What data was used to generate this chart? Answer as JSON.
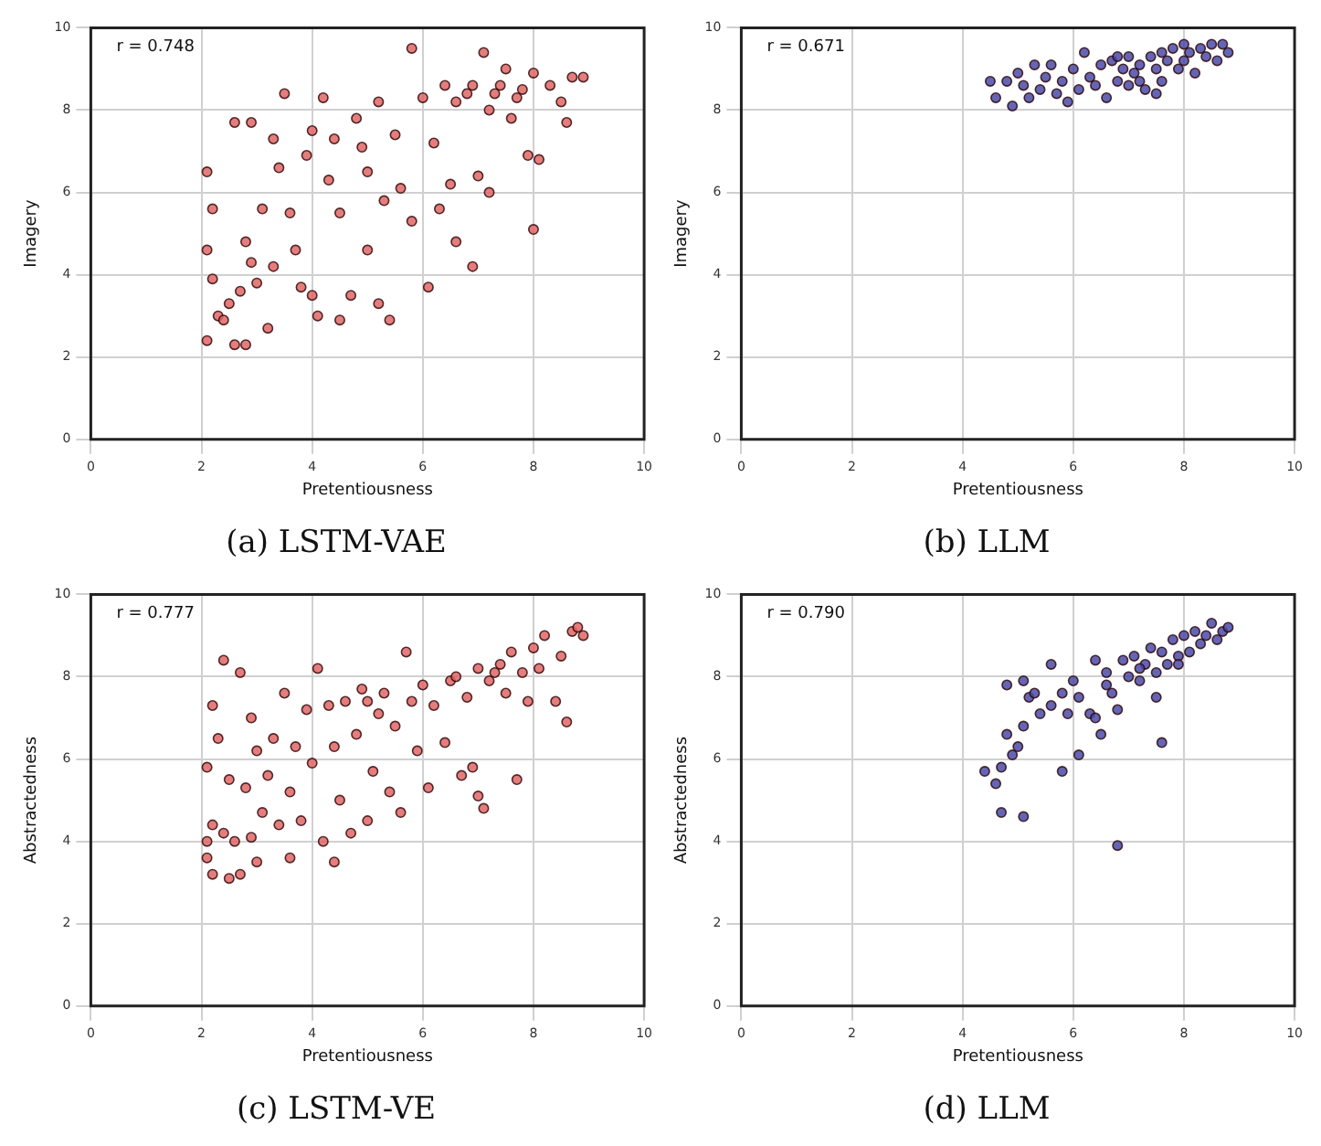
{
  "chart_data": [
    {
      "type": "scatter",
      "title": "(a) LSTM-VAE",
      "xlabel": "Pretentiousness",
      "ylabel": "Imagery",
      "color": "#e06666",
      "marker": "circle",
      "grid": true,
      "xlim": [
        0,
        10
      ],
      "ylim": [
        0,
        10
      ],
      "xticks": [
        0,
        2,
        4,
        6,
        8,
        10
      ],
      "yticks": [
        0,
        2,
        4,
        6,
        8,
        10
      ],
      "annotations": [
        "r = 0.748"
      ],
      "x": [
        2.1,
        2.2,
        2.1,
        2.2,
        2.3,
        2.1,
        2.4,
        2.5,
        2.6,
        2.7,
        2.8,
        2.9,
        3.0,
        3.2,
        3.1,
        2.6,
        2.9,
        3.3,
        3.5,
        3.4,
        3.6,
        3.7,
        3.8,
        4.0,
        4.1,
        3.9,
        4.0,
        4.2,
        4.3,
        4.5,
        4.5,
        4.7,
        4.8,
        5.0,
        5.0,
        5.2,
        5.2,
        5.4,
        5.5,
        5.6,
        5.8,
        5.8,
        6.0,
        6.1,
        6.2,
        6.4,
        6.5,
        6.6,
        6.8,
        6.9,
        7.0,
        7.1,
        7.2,
        7.4,
        7.5,
        7.6,
        7.8,
        7.9,
        8.0,
        8.0,
        8.1,
        8.3,
        8.5,
        8.6,
        8.7,
        8.9,
        6.6,
        7.3,
        7.7,
        6.9,
        4.4,
        4.9,
        3.3,
        2.8,
        5.3,
        6.3,
        7.2
      ],
      "values": [
        6.5,
        5.6,
        4.6,
        3.9,
        3.0,
        2.4,
        2.9,
        3.3,
        2.3,
        3.6,
        2.3,
        4.3,
        3.8,
        2.7,
        5.6,
        7.7,
        7.7,
        7.3,
        8.4,
        6.6,
        5.5,
        4.6,
        3.7,
        3.5,
        3.0,
        6.9,
        7.5,
        8.3,
        6.3,
        5.5,
        2.9,
        3.5,
        7.8,
        6.5,
        4.6,
        3.3,
        8.2,
        2.9,
        7.4,
        6.1,
        9.5,
        5.3,
        8.3,
        3.7,
        7.2,
        8.6,
        6.2,
        4.8,
        8.4,
        4.2,
        6.4,
        9.4,
        8.0,
        8.6,
        9.0,
        7.8,
        8.5,
        6.9,
        5.1,
        8.9,
        6.8,
        8.6,
        8.2,
        7.7,
        8.8,
        8.8,
        8.2,
        8.4,
        8.3,
        8.6,
        7.3,
        7.1,
        4.2,
        4.8,
        5.8,
        5.6,
        6.0
      ]
    },
    {
      "type": "scatter",
      "title": "(b) LLM",
      "xlabel": "Pretentiousness",
      "ylabel": "Imagery",
      "color": "#4a4aa8",
      "marker": "circle",
      "grid": true,
      "xlim": [
        0,
        10
      ],
      "ylim": [
        0,
        10
      ],
      "xticks": [
        0,
        2,
        4,
        6,
        8,
        10
      ],
      "yticks": [
        0,
        2,
        4,
        6,
        8,
        10
      ],
      "annotations": [
        "r = 0.671"
      ],
      "x": [
        4.5,
        4.6,
        4.8,
        4.9,
        5.0,
        5.1,
        5.2,
        5.3,
        5.4,
        5.5,
        5.6,
        5.7,
        5.8,
        5.9,
        6.0,
        6.1,
        6.2,
        6.3,
        6.4,
        6.5,
        6.6,
        6.7,
        6.8,
        6.9,
        7.0,
        7.0,
        7.1,
        7.2,
        7.3,
        7.4,
        7.5,
        7.6,
        7.6,
        7.7,
        7.8,
        7.9,
        8.0,
        8.0,
        8.1,
        8.2,
        8.3,
        8.4,
        8.5,
        8.6,
        8.7,
        8.8,
        7.2,
        6.8,
        7.5
      ],
      "values": [
        8.7,
        8.3,
        8.7,
        8.1,
        8.9,
        8.6,
        8.3,
        9.1,
        8.5,
        8.8,
        9.1,
        8.4,
        8.7,
        8.2,
        9.0,
        8.5,
        9.4,
        8.8,
        8.6,
        9.1,
        8.3,
        9.2,
        8.7,
        9.0,
        9.3,
        8.6,
        8.9,
        9.1,
        8.5,
        9.3,
        9.0,
        9.4,
        8.7,
        9.2,
        9.5,
        9.0,
        9.6,
        9.2,
        9.4,
        8.9,
        9.5,
        9.3,
        9.6,
        9.2,
        9.6,
        9.4,
        8.7,
        9.3,
        8.4
      ]
    },
    {
      "type": "scatter",
      "title": "(c) LSTM-VE",
      "xlabel": "Pretentiousness",
      "ylabel": "Abstractedness",
      "color": "#e06666",
      "marker": "circle",
      "grid": true,
      "xlim": [
        0,
        10
      ],
      "ylim": [
        0,
        10
      ],
      "xticks": [
        0,
        2,
        4,
        6,
        8,
        10
      ],
      "yticks": [
        0,
        2,
        4,
        6,
        8,
        10
      ],
      "annotations": [
        "r = 0.777"
      ],
      "x": [
        2.1,
        2.1,
        2.1,
        2.2,
        2.2,
        2.2,
        2.3,
        2.4,
        2.4,
        2.5,
        2.5,
        2.6,
        2.7,
        2.7,
        2.8,
        2.9,
        2.9,
        3.0,
        3.0,
        3.1,
        3.2,
        3.3,
        3.4,
        3.5,
        3.6,
        3.6,
        3.7,
        3.8,
        3.9,
        4.0,
        4.1,
        4.2,
        4.3,
        4.4,
        4.4,
        4.5,
        4.6,
        4.7,
        4.8,
        4.9,
        5.0,
        5.1,
        5.2,
        5.3,
        5.4,
        5.5,
        5.6,
        5.7,
        5.8,
        5.9,
        6.0,
        6.1,
        6.2,
        6.4,
        6.5,
        6.7,
        6.8,
        6.9,
        7.0,
        7.0,
        7.1,
        7.2,
        7.4,
        7.5,
        7.6,
        7.7,
        7.8,
        7.9,
        8.0,
        8.1,
        8.2,
        8.4,
        8.5,
        8.6,
        8.7,
        8.8,
        8.9,
        6.6,
        7.3,
        5.0
      ],
      "values": [
        3.6,
        4.0,
        5.8,
        3.2,
        4.4,
        7.3,
        6.5,
        8.4,
        4.2,
        3.1,
        5.5,
        4.0,
        8.1,
        3.2,
        5.3,
        7.0,
        4.1,
        6.2,
        3.5,
        4.7,
        5.6,
        6.5,
        4.4,
        7.6,
        3.6,
        5.2,
        6.3,
        4.5,
        7.2,
        5.9,
        8.2,
        4.0,
        7.3,
        6.3,
        3.5,
        5.0,
        7.4,
        4.2,
        6.6,
        7.7,
        4.5,
        5.7,
        7.1,
        7.6,
        5.2,
        6.8,
        4.7,
        8.6,
        7.4,
        6.2,
        7.8,
        5.3,
        7.3,
        6.4,
        7.9,
        5.6,
        7.5,
        5.8,
        8.2,
        5.1,
        4.8,
        7.9,
        8.3,
        7.6,
        8.6,
        5.5,
        8.1,
        7.4,
        8.7,
        8.2,
        9.0,
        7.4,
        8.5,
        6.9,
        9.1,
        9.2,
        9.0,
        8.0,
        8.1,
        7.4
      ]
    },
    {
      "type": "scatter",
      "title": "(d) LLM",
      "xlabel": "Pretentiousness",
      "ylabel": "Abstractedness",
      "color": "#4a4aa8",
      "marker": "circle",
      "grid": true,
      "xlim": [
        0,
        10
      ],
      "ylim": [
        0,
        10
      ],
      "xticks": [
        0,
        2,
        4,
        6,
        8,
        10
      ],
      "yticks": [
        0,
        2,
        4,
        6,
        8,
        10
      ],
      "annotations": [
        "r = 0.790"
      ],
      "x": [
        4.4,
        4.6,
        4.7,
        4.7,
        4.8,
        4.8,
        4.9,
        5.0,
        5.1,
        5.1,
        5.1,
        5.2,
        5.3,
        5.4,
        5.6,
        5.6,
        5.8,
        5.8,
        5.9,
        6.0,
        6.1,
        6.1,
        6.3,
        6.4,
        6.4,
        6.5,
        6.6,
        6.7,
        6.8,
        6.8,
        6.9,
        7.0,
        7.1,
        7.2,
        7.3,
        7.4,
        7.5,
        7.6,
        7.6,
        7.7,
        7.8,
        7.9,
        8.0,
        8.1,
        8.2,
        8.3,
        8.4,
        8.5,
        8.6,
        8.7,
        8.8,
        7.2,
        6.6,
        7.9,
        7.5
      ],
      "values": [
        5.7,
        5.4,
        4.7,
        5.8,
        7.8,
        6.6,
        6.1,
        6.3,
        4.6,
        7.9,
        6.8,
        7.5,
        7.6,
        7.1,
        8.3,
        7.3,
        5.7,
        7.6,
        7.1,
        7.9,
        6.1,
        7.5,
        7.1,
        8.4,
        7.0,
        6.6,
        8.1,
        7.6,
        3.9,
        7.2,
        8.4,
        8.0,
        8.5,
        7.9,
        8.3,
        8.7,
        8.1,
        6.4,
        8.6,
        8.3,
        8.9,
        8.5,
        9.0,
        8.6,
        9.1,
        8.8,
        9.0,
        9.3,
        8.9,
        9.1,
        9.2,
        8.2,
        7.8,
        8.3,
        7.5
      ]
    }
  ]
}
